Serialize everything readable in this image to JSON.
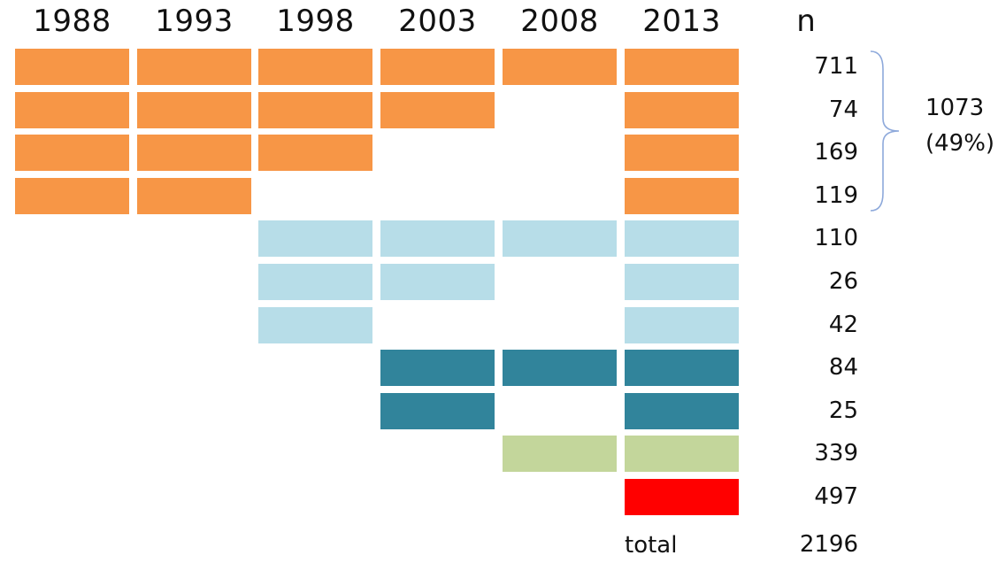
{
  "header": {
    "years": [
      "1988",
      "1993",
      "1998",
      "2003",
      "2008",
      "2013"
    ],
    "n_label": "n"
  },
  "colors": {
    "orange": "#F79646",
    "light_blue": "#B7DDE8",
    "teal": "#31849B",
    "light_green": "#C3D69B",
    "red": "#FF0000",
    "brace": "#8EA9DB"
  },
  "rows": [
    {
      "group": "orange",
      "years_present": [
        1,
        1,
        1,
        1,
        1,
        1
      ],
      "n": "711"
    },
    {
      "group": "orange",
      "years_present": [
        1,
        1,
        1,
        1,
        0,
        1
      ],
      "n": "74"
    },
    {
      "group": "orange",
      "years_present": [
        1,
        1,
        1,
        0,
        0,
        1
      ],
      "n": "169"
    },
    {
      "group": "orange",
      "years_present": [
        1,
        1,
        0,
        0,
        0,
        1
      ],
      "n": "119"
    },
    {
      "group": "light_blue",
      "years_present": [
        0,
        0,
        1,
        1,
        1,
        1
      ],
      "n": "110"
    },
    {
      "group": "light_blue",
      "years_present": [
        0,
        0,
        1,
        1,
        0,
        1
      ],
      "n": "26"
    },
    {
      "group": "light_blue",
      "years_present": [
        0,
        0,
        1,
        0,
        0,
        1
      ],
      "n": "42"
    },
    {
      "group": "teal",
      "years_present": [
        0,
        0,
        0,
        1,
        1,
        1
      ],
      "n": "84"
    },
    {
      "group": "teal",
      "years_present": [
        0,
        0,
        0,
        1,
        0,
        1
      ],
      "n": "25"
    },
    {
      "group": "light_green",
      "years_present": [
        0,
        0,
        0,
        0,
        1,
        1
      ],
      "n": "339"
    },
    {
      "group": "red",
      "years_present": [
        0,
        0,
        0,
        0,
        0,
        1
      ],
      "n": "497"
    }
  ],
  "subtotal": {
    "value": "1073",
    "percent": "(49%)"
  },
  "total": {
    "label": "total",
    "value": "2196"
  }
}
